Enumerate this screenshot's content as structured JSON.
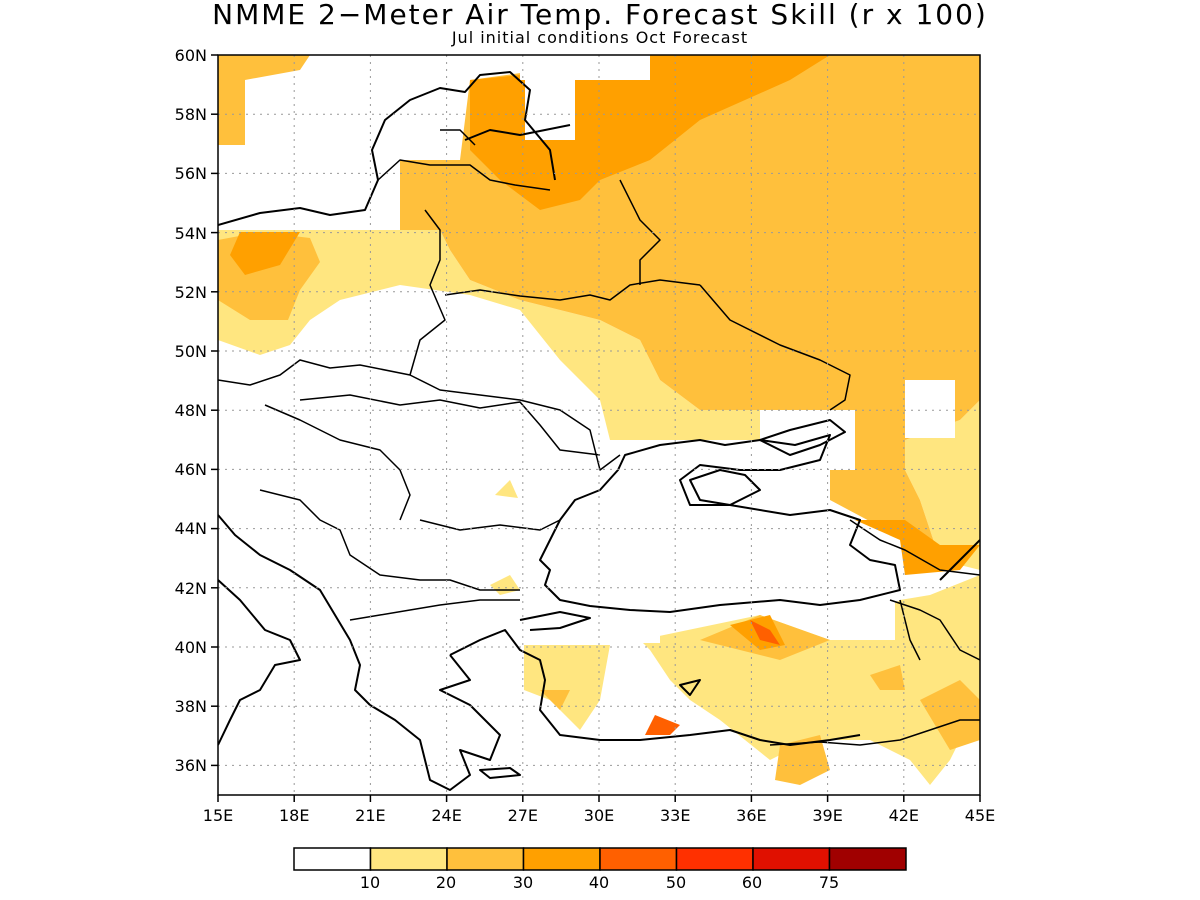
{
  "title": "NMME 2−Meter Air Temp. Forecast Skill (r x 100)",
  "subtitle": "Jul initial conditions  Oct Forecast",
  "map": {
    "lon_range": [
      15,
      45
    ],
    "lat_range": [
      35,
      60
    ],
    "x_tick_labels": [
      "15E",
      "18E",
      "21E",
      "24E",
      "27E",
      "30E",
      "33E",
      "36E",
      "39E",
      "42E",
      "45E"
    ],
    "y_tick_labels": [
      "36N",
      "38N",
      "40N",
      "42N",
      "44N",
      "46N",
      "48N",
      "50N",
      "52N",
      "54N",
      "56N",
      "58N",
      "60N"
    ],
    "grid": "dotted",
    "skill_colors": {
      "10_20": "#ffe680",
      "20_30": "#ffc03c",
      "30_40": "#ffa000",
      "40_50": "#ff6000"
    }
  },
  "colorbar": {
    "colors": [
      "#ffffff",
      "#ffe680",
      "#ffc03c",
      "#ffa000",
      "#ff6000",
      "#ff3000",
      "#e01000",
      "#a00000"
    ],
    "labels": [
      "10",
      "20",
      "30",
      "40",
      "50",
      "60",
      "75"
    ]
  }
}
